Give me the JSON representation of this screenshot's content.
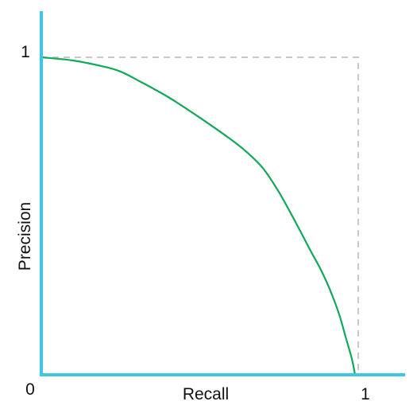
{
  "chart_data": {
    "type": "line",
    "title": "",
    "xlabel": "Recall",
    "ylabel": "Precision",
    "xlim": [
      0,
      1
    ],
    "ylim": [
      0,
      1
    ],
    "grid": false,
    "legend": "none",
    "x_tick_labels": {
      "origin": "0",
      "max": "1"
    },
    "y_tick_labels": {
      "max": "1"
    },
    "colors": {
      "axis": "#3ec6e6",
      "curve": "#12a85a",
      "reference": "#c8c8c8"
    },
    "reference": {
      "style": "dashed",
      "x": [
        0,
        1,
        1
      ],
      "y": [
        1,
        1,
        0
      ]
    },
    "series": [
      {
        "x": [
          0.0,
          0.1,
          0.2,
          0.25,
          0.3,
          0.4,
          0.5,
          0.6,
          0.65,
          0.7,
          0.75,
          0.8,
          0.85,
          0.88,
          0.91,
          0.94,
          0.96,
          0.98,
          0.99
        ],
        "y": [
          1.0,
          0.99,
          0.97,
          0.955,
          0.93,
          0.875,
          0.81,
          0.74,
          0.7,
          0.65,
          0.575,
          0.485,
          0.39,
          0.335,
          0.27,
          0.19,
          0.12,
          0.05,
          0.0
        ]
      }
    ]
  }
}
